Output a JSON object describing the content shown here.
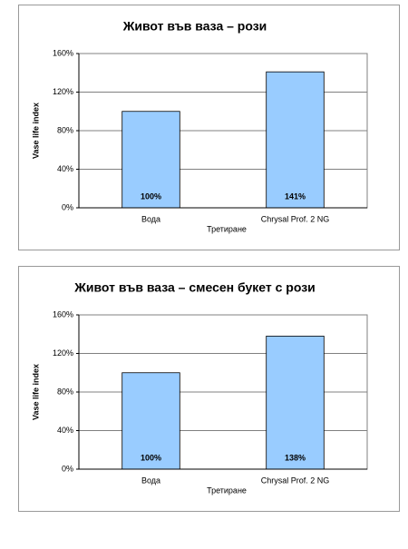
{
  "chart_data": [
    {
      "type": "bar",
      "title": "Живот във ваза – рози",
      "categories": [
        "Вода",
        "Chrysal Prof. 2 NG"
      ],
      "values": [
        100,
        141
      ],
      "value_labels": [
        "100%",
        "141%"
      ],
      "color": "#99ccff",
      "xlabel": "Третиране",
      "ylabel": "Vase life index",
      "ylim": [
        0,
        160
      ],
      "yticks": [
        {
          "value": 0,
          "label": "0%"
        },
        {
          "value": 40,
          "label": "40%"
        },
        {
          "value": 80,
          "label": "80%"
        },
        {
          "value": 120,
          "label": "120%"
        },
        {
          "value": 160,
          "label": "160%"
        }
      ],
      "grid": true
    },
    {
      "type": "bar",
      "title": "Живот във ваза – смесен букет с рози",
      "categories": [
        "Вода",
        "Chrysal Prof. 2 NG"
      ],
      "values": [
        100,
        138
      ],
      "value_labels": [
        "100%",
        "138%"
      ],
      "color": "#99ccff",
      "xlabel": "Третиране",
      "ylabel": "Vase life index",
      "ylim": [
        0,
        160
      ],
      "yticks": [
        {
          "value": 0,
          "label": "0%"
        },
        {
          "value": 40,
          "label": "40%"
        },
        {
          "value": 80,
          "label": "80%"
        },
        {
          "value": 120,
          "label": "120%"
        },
        {
          "value": 160,
          "label": "160%"
        }
      ],
      "grid": true
    }
  ]
}
